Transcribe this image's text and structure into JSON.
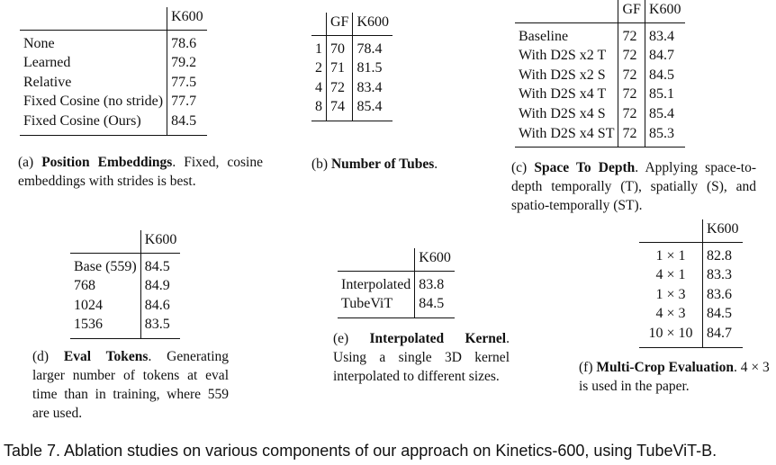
{
  "tables": {
    "a": {
      "header": "K600",
      "rows": [
        {
          "label": "None",
          "value": "78.6"
        },
        {
          "label": "Learned",
          "value": "79.2"
        },
        {
          "label": "Relative",
          "value": "77.5"
        },
        {
          "label": "Fixed Cosine (no stride)",
          "value": "77.7"
        },
        {
          "label": "Fixed Cosine (Ours)",
          "value": "84.5"
        }
      ],
      "caption_prefix": "(a) ",
      "caption_title": "Position Embeddings",
      "caption_text": ". Fixed, cosine embeddings with strides is best."
    },
    "b": {
      "headers": [
        "GF",
        "K600"
      ],
      "rows": [
        {
          "tubes": "1",
          "gf": "70",
          "k600": "78.4"
        },
        {
          "tubes": "2",
          "gf": "71",
          "k600": "81.5"
        },
        {
          "tubes": "4",
          "gf": "72",
          "k600": "83.4"
        },
        {
          "tubes": "8",
          "gf": "74",
          "k600": "85.4"
        }
      ],
      "caption_prefix": "(b) ",
      "caption_title": "Number of Tubes",
      "caption_text": "."
    },
    "c": {
      "headers": [
        "GF",
        "K600"
      ],
      "rows": [
        {
          "label": "Baseline",
          "gf": "72",
          "k600": "83.4"
        },
        {
          "label": "With D2S x2 T",
          "gf": "72",
          "k600": "84.7"
        },
        {
          "label": "With D2S x2 S",
          "gf": "72",
          "k600": "84.5"
        },
        {
          "label": "With D2S x4 T",
          "gf": "72",
          "k600": "85.1"
        },
        {
          "label": "With D2S x4 S",
          "gf": "72",
          "k600": "85.4"
        },
        {
          "label": "With D2S x4 ST",
          "gf": "72",
          "k600": "85.3"
        }
      ],
      "caption_prefix": "(c) ",
      "caption_title": "Space To Depth",
      "caption_text": ". Applying space-to-depth temporally (T), spatially (S), and spatio-temporally (ST)."
    },
    "d": {
      "header": "K600",
      "rows": [
        {
          "label": "Base (559)",
          "value": "84.5"
        },
        {
          "label": "768",
          "value": "84.9"
        },
        {
          "label": "1024",
          "value": "84.6"
        },
        {
          "label": "1536",
          "value": "83.5"
        }
      ],
      "caption_prefix": "(d) ",
      "caption_title": "Eval Tokens",
      "caption_text": ". Generating larger number of tokens at eval time than in training, where 559 are used."
    },
    "e": {
      "header": "K600",
      "rows": [
        {
          "label": "Interpolated",
          "value": "83.8"
        },
        {
          "label": "TubeViT",
          "value": "84.5"
        }
      ],
      "caption_prefix": "(e) ",
      "caption_title": "Interpolated Kernel",
      "caption_text": ". Using a single 3D kernel interpolated to different sizes."
    },
    "f": {
      "header": "K600",
      "rows": [
        {
          "label": "1 × 1",
          "value": "82.8"
        },
        {
          "label": "4 × 1",
          "value": "83.3"
        },
        {
          "label": "1 × 3",
          "value": "83.6"
        },
        {
          "label": "4 × 3",
          "value": "84.5"
        },
        {
          "label": "10 × 10",
          "value": "84.7"
        }
      ],
      "caption_prefix": "(f) ",
      "caption_title": "Multi-Crop Evaluation",
      "caption_text": ". 4 × 3 is used in the paper."
    }
  },
  "main_caption": "Table 7. Ablation studies on various components of our approach on Kinetics-600, using TubeViT-B."
}
